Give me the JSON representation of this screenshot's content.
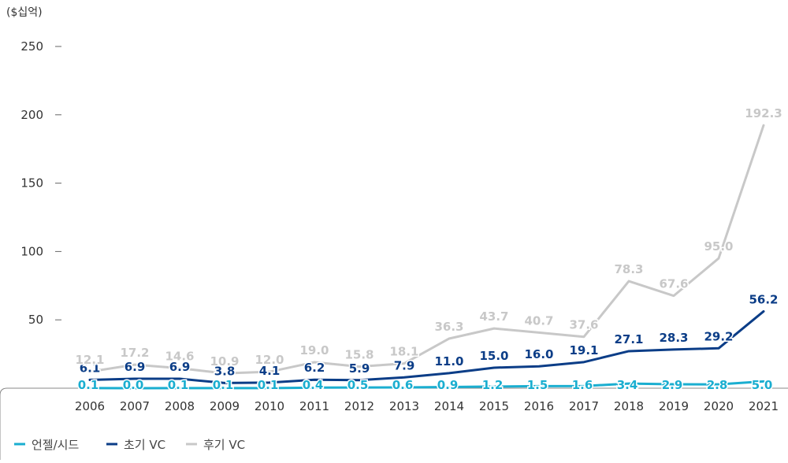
{
  "chart_data": {
    "type": "line",
    "unit_label": "($십억)",
    "ylim": [
      0,
      250
    ],
    "y_ticks": [
      50,
      100,
      150,
      200,
      250
    ],
    "x": [
      "2006",
      "2007",
      "2008",
      "2009",
      "2010",
      "2011",
      "2012",
      "2013",
      "2014",
      "2015",
      "2016",
      "2017",
      "2018",
      "2019",
      "2020",
      "2021"
    ],
    "series": [
      {
        "name": "언젤/시드",
        "color": "#1aaed0",
        "values": [
          0.1,
          0.0,
          0.1,
          0.1,
          0.1,
          0.4,
          0.5,
          0.6,
          0.9,
          1.2,
          1.5,
          1.6,
          3.4,
          2.9,
          2.8,
          5.0
        ],
        "labels": [
          "0.1",
          "0.0",
          "0.1",
          "0.1",
          "0.1",
          "0.4",
          "0.5",
          "0.6",
          "0.9",
          "1.2",
          "1.5",
          "1.6",
          "3.4",
          "2.9",
          "2.8",
          "5.0"
        ]
      },
      {
        "name": "초기 VC",
        "color": "#0b3d87",
        "values": [
          6.1,
          6.9,
          6.9,
          3.8,
          4.1,
          6.2,
          5.9,
          7.9,
          11.0,
          15.0,
          16.0,
          19.1,
          27.1,
          28.3,
          29.2,
          56.2
        ],
        "labels": [
          "6.1",
          "6.9",
          "6.9",
          "3.8",
          "4.1",
          "6.2",
          "5.9",
          "7.9",
          "11.0",
          "15.0",
          "16.0",
          "19.1",
          "27.1",
          "28.3",
          "29.2",
          "56.2"
        ]
      },
      {
        "name": "후기 VC",
        "color": "#c8c8c8",
        "values": [
          12.1,
          17.2,
          14.6,
          10.9,
          12.0,
          19.0,
          15.8,
          18.1,
          36.3,
          43.7,
          40.7,
          37.6,
          78.3,
          67.6,
          95.0,
          192.3
        ],
        "labels": [
          "12.1",
          "17.2",
          "14.6",
          "10.9",
          "12.0",
          "19.0",
          "15.8",
          "18.1",
          "36.3",
          "43.7",
          "40.7",
          "37.6",
          "78.3",
          "67.6",
          "95.0",
          "192.3"
        ]
      }
    ],
    "legend_position": "bottom-left",
    "grid": false
  }
}
